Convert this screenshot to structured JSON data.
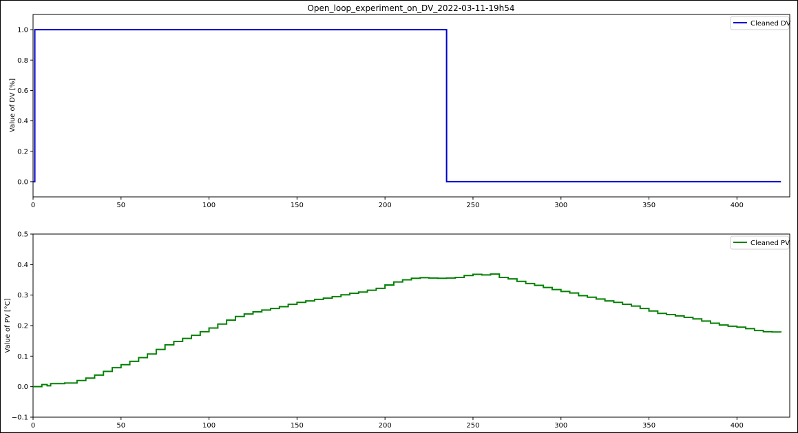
{
  "chart_data": [
    {
      "type": "line",
      "title": "Open_loop_experiment_on_DV_2022-03-11-19h54",
      "xlabel": "",
      "ylabel": "Value of DV [%]",
      "xlim": [
        0,
        430
      ],
      "ylim": [
        -0.1,
        1.1
      ],
      "xticks": [
        0,
        50,
        100,
        150,
        200,
        250,
        300,
        350,
        400
      ],
      "yticks": [
        0.0,
        0.2,
        0.4,
        0.6,
        0.8,
        1.0
      ],
      "ytick_labels": [
        "0.0",
        "0.2",
        "0.4",
        "0.6",
        "0.8",
        "1.0"
      ],
      "grid": false,
      "legend_position": "upper right",
      "series": [
        {
          "name": "Cleaned DV",
          "color": "#0000cd",
          "step": true,
          "x": [
            0,
            1,
            235,
            425
          ],
          "y": [
            0.0,
            1.0,
            0.0,
            0.0
          ]
        }
      ]
    },
    {
      "type": "line",
      "title": "",
      "xlabel": "",
      "ylabel": "Value of PV [°C]",
      "xlim": [
        0,
        430
      ],
      "ylim": [
        -0.1,
        0.5
      ],
      "xticks": [
        0,
        50,
        100,
        150,
        200,
        250,
        300,
        350,
        400
      ],
      "yticks": [
        -0.1,
        0.0,
        0.1,
        0.2,
        0.3,
        0.4,
        0.5
      ],
      "ytick_labels": [
        "−0.1",
        "0.0",
        "0.1",
        "0.2",
        "0.3",
        "0.4",
        "0.5"
      ],
      "grid": false,
      "legend_position": "upper right",
      "series": [
        {
          "name": "Cleaned PV",
          "color": "#008000",
          "step": true,
          "x": [
            0,
            5,
            8,
            10,
            18,
            25,
            30,
            35,
            40,
            45,
            50,
            55,
            60,
            65,
            70,
            75,
            80,
            85,
            90,
            95,
            100,
            105,
            110,
            115,
            120,
            125,
            130,
            135,
            140,
            145,
            150,
            155,
            160,
            165,
            170,
            175,
            180,
            185,
            190,
            195,
            200,
            205,
            210,
            215,
            220,
            225,
            230,
            235,
            240,
            245,
            250,
            255,
            260,
            265,
            270,
            275,
            280,
            285,
            290,
            295,
            300,
            305,
            310,
            315,
            320,
            325,
            330,
            335,
            340,
            345,
            350,
            355,
            360,
            365,
            370,
            375,
            380,
            385,
            390,
            395,
            400,
            405,
            410,
            415,
            420,
            425
          ],
          "y": [
            0.0,
            0.007,
            0.003,
            0.01,
            0.012,
            0.02,
            0.028,
            0.038,
            0.05,
            0.062,
            0.072,
            0.083,
            0.095,
            0.107,
            0.122,
            0.137,
            0.148,
            0.158,
            0.168,
            0.18,
            0.192,
            0.205,
            0.218,
            0.23,
            0.238,
            0.245,
            0.251,
            0.256,
            0.262,
            0.27,
            0.276,
            0.281,
            0.286,
            0.29,
            0.295,
            0.301,
            0.306,
            0.31,
            0.316,
            0.322,
            0.333,
            0.343,
            0.35,
            0.355,
            0.357,
            0.356,
            0.355,
            0.356,
            0.358,
            0.364,
            0.368,
            0.366,
            0.369,
            0.358,
            0.353,
            0.345,
            0.338,
            0.332,
            0.325,
            0.318,
            0.312,
            0.307,
            0.298,
            0.293,
            0.287,
            0.281,
            0.276,
            0.27,
            0.264,
            0.256,
            0.248,
            0.24,
            0.236,
            0.232,
            0.227,
            0.222,
            0.215,
            0.208,
            0.202,
            0.198,
            0.195,
            0.19,
            0.184,
            0.18,
            0.179,
            0.178
          ]
        }
      ]
    }
  ]
}
